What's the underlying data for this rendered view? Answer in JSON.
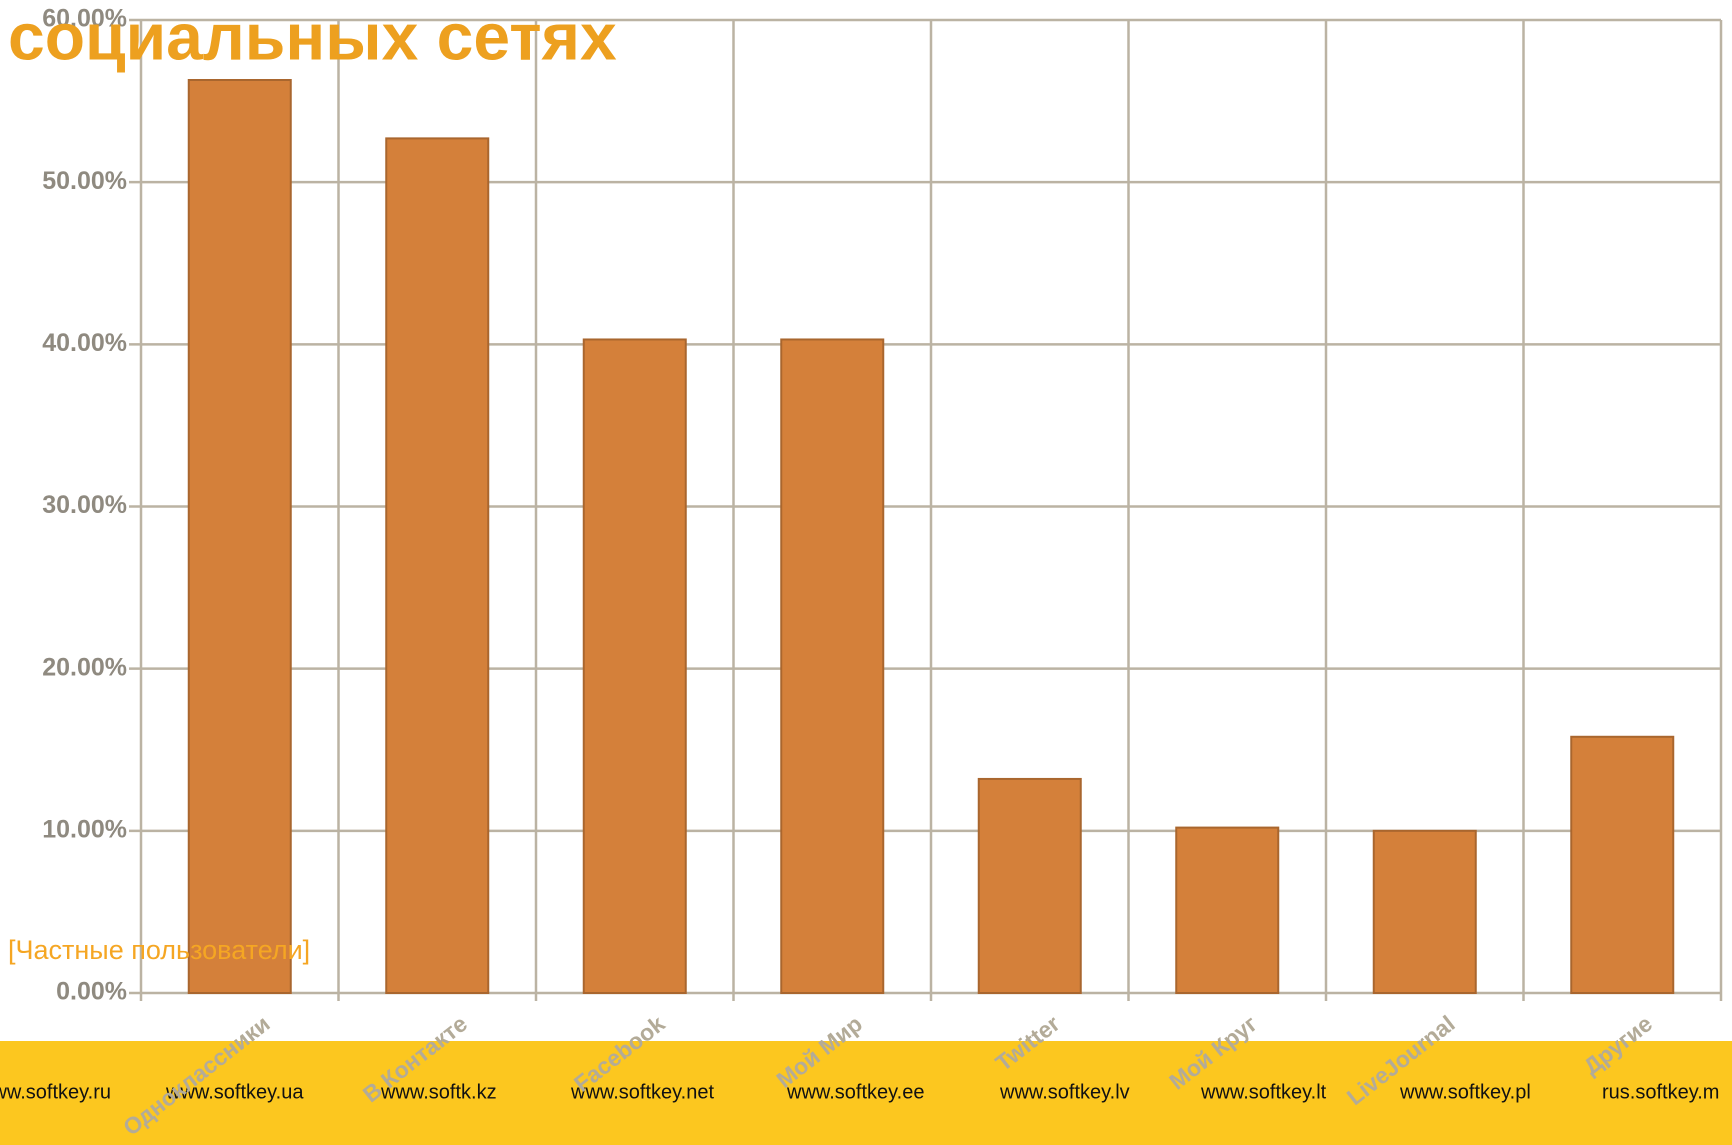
{
  "chart_data": {
    "type": "bar",
    "title": "социальных сетях",
    "subtitle": "[Частные пользователи]",
    "categories": [
      "Одноклассники",
      "В Контакте",
      "Facebook",
      "Мой Мир",
      "Twitter",
      "Мой Круг",
      "LiveJournal",
      "Другие"
    ],
    "values": [
      56.3,
      52.7,
      40.3,
      40.3,
      13.2,
      10.2,
      10.0,
      15.8
    ],
    "color": "#d4803a",
    "ylim": [
      0,
      60
    ],
    "yticks": [
      {
        "value": 0,
        "label": "0.00%"
      },
      {
        "value": 10,
        "label": "10.00%"
      },
      {
        "value": 20,
        "label": "20.00%"
      },
      {
        "value": 30,
        "label": "30.00%"
      },
      {
        "value": 40,
        "label": "40.00%"
      },
      {
        "value": 50,
        "label": "50.00%"
      },
      {
        "value": 60,
        "label": "60.00%"
      }
    ],
    "grid": true
  },
  "footer": {
    "links": [
      "www.softkey.ru",
      "www.softkey.ua",
      "www.softk.kz",
      "www.softkey.net",
      "www.softkey.ee",
      "www.softkey.lv",
      "www.softkey.lt",
      "www.softkey.pl",
      "rus.softkey.m"
    ]
  }
}
